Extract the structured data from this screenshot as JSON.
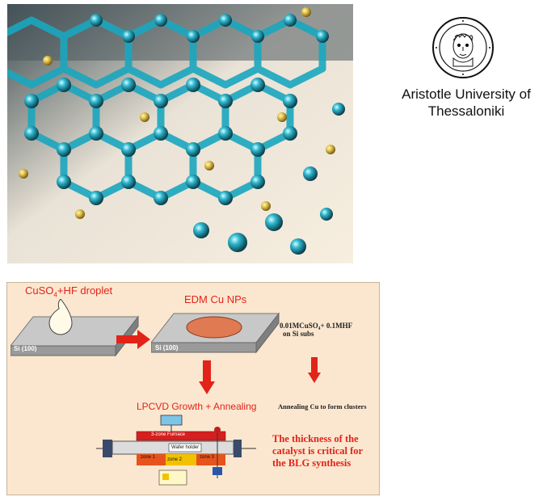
{
  "university": {
    "name_line1": "Aristotle University of",
    "name_line2": "Thessaloniki",
    "logo_icon": "seal-head-icon"
  },
  "hero": {
    "icon": "graphene-lattice-illustration"
  },
  "process": {
    "droplet_label_prefix": "CuSO",
    "droplet_label_sub": "4",
    "droplet_label_suffix": "+HF droplet",
    "wafer1_label": "Si (100)",
    "step2_label": "EDM Cu NPs",
    "wafer2_label": "Si (100)",
    "solution_label_line1": "0.01MCuSO₄+ 0.1MHF",
    "solution_label_line2": "on Si subs",
    "anneal_label": "Annealing Cu to form clusters",
    "growth_label": "LPCVD Growth + Annealing",
    "note_line1": "The thickness of the",
    "note_line2": "catalyst is critical for",
    "note_line3": "the BLG synthesis",
    "furnace": {
      "title": "3-zone Furnace",
      "holder": "Wafer holder",
      "zone1": "zone 1",
      "zone2": "zone 2",
      "zone3": "zone 3"
    },
    "colors": {
      "red": "#e2231a",
      "panel_bg": "#fbe7cf",
      "copper": "#e07a52"
    }
  }
}
